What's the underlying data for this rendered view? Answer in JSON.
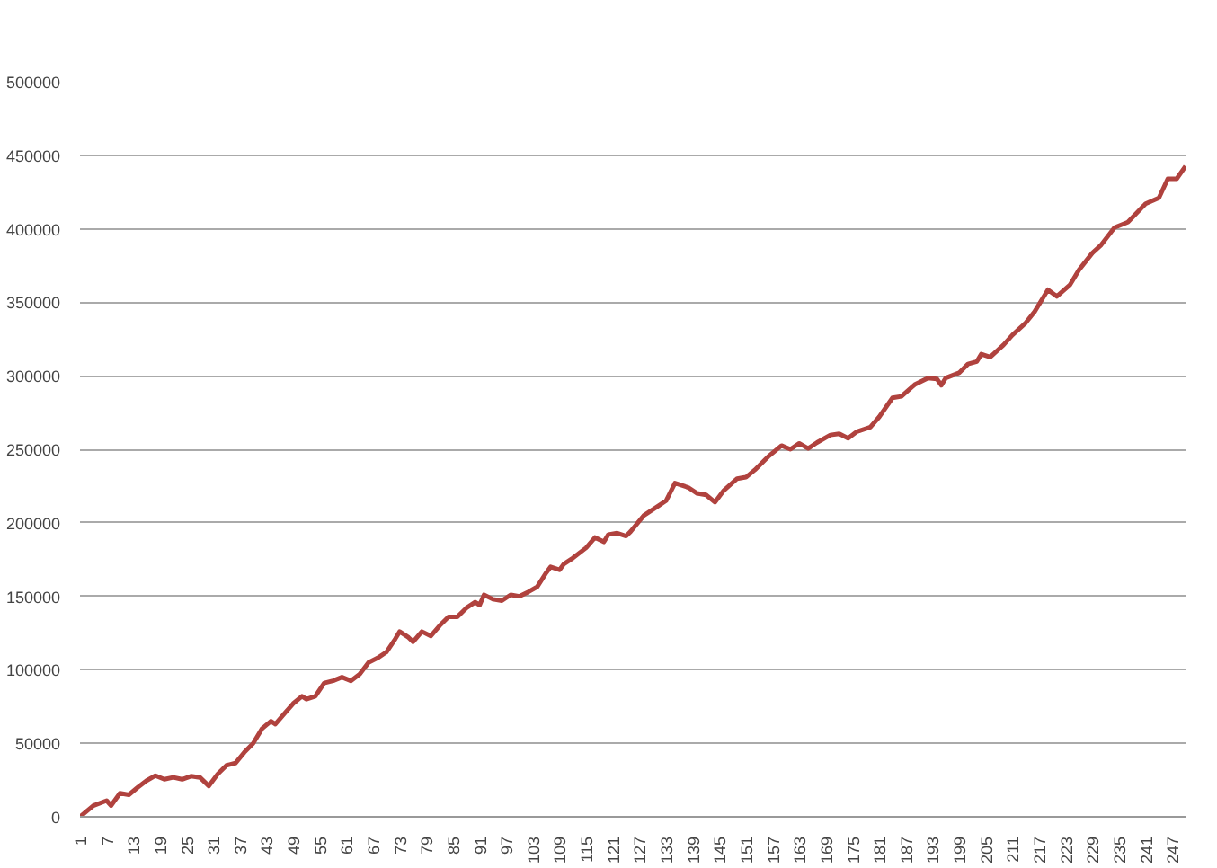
{
  "chart_data": {
    "type": "line",
    "xlim": [
      1,
      250
    ],
    "ylim": [
      0,
      500000
    ],
    "xticks": [
      1,
      7,
      13,
      19,
      25,
      31,
      37,
      43,
      49,
      55,
      61,
      67,
      73,
      79,
      85,
      91,
      97,
      103,
      109,
      115,
      121,
      127,
      133,
      139,
      145,
      151,
      157,
      163,
      169,
      175,
      181,
      187,
      193,
      199,
      205,
      211,
      217,
      223,
      229,
      235,
      241,
      247
    ],
    "yticks": [
      0,
      50000,
      100000,
      150000,
      200000,
      250000,
      300000,
      350000,
      400000,
      450000,
      500000
    ],
    "grid": "y",
    "marker": "none",
    "line_style": "solid",
    "series": [
      {
        "color": "#b0423e",
        "x": [
          1,
          4,
          7,
          8,
          10,
          12,
          14,
          16,
          18,
          20,
          22,
          24,
          26,
          28,
          30,
          32,
          34,
          36,
          38,
          40,
          42,
          44,
          45,
          47,
          49,
          51,
          52,
          54,
          56,
          58,
          60,
          62,
          64,
          66,
          68,
          70,
          72,
          73,
          75,
          76,
          78,
          80,
          82,
          84,
          86,
          88,
          90,
          91,
          92,
          94,
          96,
          98,
          100,
          102,
          104,
          106,
          107,
          109,
          110,
          112,
          115,
          117,
          119,
          120,
          122,
          124,
          125,
          128,
          131,
          133,
          135,
          138,
          140,
          142,
          144,
          146,
          149,
          151,
          153,
          156,
          159,
          161,
          163,
          165,
          167,
          170,
          172,
          174,
          176,
          179,
          181,
          184,
          186,
          189,
          192,
          194,
          195,
          196,
          199,
          201,
          203,
          204,
          206,
          209,
          211,
          214,
          216,
          219,
          221,
          224,
          226,
          229,
          231,
          234,
          237,
          241,
          244,
          246,
          248,
          250
        ],
        "values": [
          0,
          7600,
          11000,
          7600,
          16000,
          15000,
          20000,
          24600,
          28000,
          25500,
          26800,
          25500,
          27600,
          26800,
          21000,
          29000,
          35000,
          36500,
          43800,
          50000,
          60000,
          65000,
          63000,
          70000,
          77000,
          82000,
          80000,
          82000,
          91000,
          92500,
          95000,
          92500,
          97000,
          105000,
          108000,
          112000,
          121000,
          126000,
          122000,
          119000,
          126000,
          123000,
          130000,
          136000,
          136000,
          142000,
          146000,
          144000,
          151000,
          148000,
          147000,
          151000,
          150000,
          153000,
          156500,
          166000,
          170000,
          168000,
          172000,
          176000,
          183000,
          190000,
          187000,
          192000,
          193000,
          191000,
          194000,
          205000,
          211000,
          215000,
          227000,
          224000,
          220000,
          219000,
          214000,
          222000,
          230000,
          231000,
          236000,
          245000,
          252500,
          250000,
          254000,
          250500,
          254600,
          259700,
          260500,
          257500,
          262000,
          265000,
          272000,
          285000,
          286000,
          294000,
          298500,
          297800,
          293600,
          298500,
          302000,
          308000,
          309700,
          314700,
          312700,
          321000,
          327700,
          336000,
          343600,
          358500,
          354000,
          362000,
          372000,
          383500,
          389000,
          400800,
          404500,
          417000,
          421000,
          434000,
          434000,
          442600
        ]
      }
    ]
  }
}
